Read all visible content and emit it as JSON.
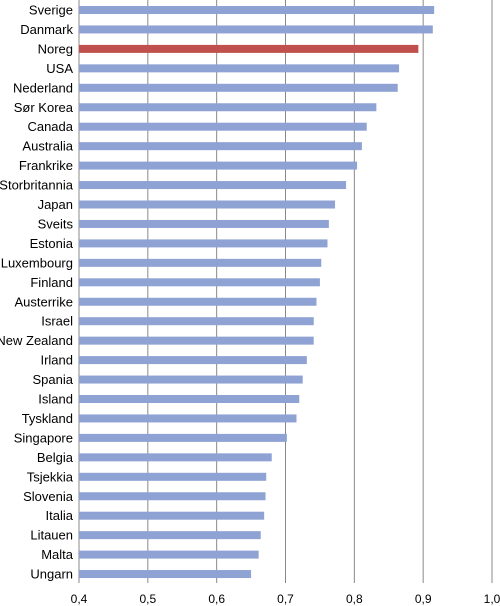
{
  "chart_data": {
    "type": "bar",
    "orientation": "horizontal",
    "categories": [
      "Sverige",
      "Danmark",
      "Noreg",
      "USA",
      "Nederland",
      "Sør Korea",
      "Canada",
      "Australia",
      "Frankrike",
      "Storbritannia",
      "Japan",
      "Sveits",
      "Estonia",
      "Luxembourg",
      "Finland",
      "Austerrike",
      "Israel",
      "New Zealand",
      "Irland",
      "Spania",
      "Island",
      "Tyskland",
      "Singapore",
      "Belgia",
      "Tsjekkia",
      "Slovenia",
      "Italia",
      "Litauen",
      "Malta",
      "Ungarn"
    ],
    "values": [
      0.916,
      0.914,
      0.893,
      0.865,
      0.863,
      0.832,
      0.818,
      0.811,
      0.804,
      0.788,
      0.772,
      0.763,
      0.761,
      0.752,
      0.75,
      0.745,
      0.741,
      0.741,
      0.731,
      0.725,
      0.72,
      0.716,
      0.702,
      0.68,
      0.672,
      0.671,
      0.669,
      0.664,
      0.661,
      0.65
    ],
    "highlight": "Noreg",
    "colors": {
      "bar": "#8fa2d4",
      "highlight": "#c0504d",
      "grid": "#888888"
    },
    "xlim": [
      0.4,
      1.0
    ],
    "xticks": [
      "0,4",
      "0,5",
      "0,6",
      "0,7",
      "0,8",
      "0,9",
      "1,0"
    ],
    "grid": true,
    "title": "",
    "xlabel": "",
    "ylabel": ""
  }
}
